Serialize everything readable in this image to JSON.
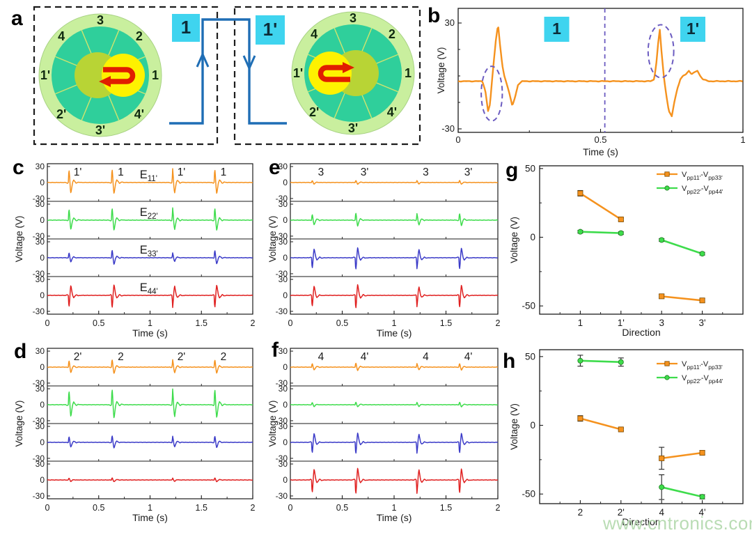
{
  "watermark": "www.cntronics.com",
  "colors": {
    "orange": "#f5921e",
    "green": "#3edc4c",
    "blue": "#3b3bc8",
    "red": "#e02020",
    "cyan_box": "#3fd4ef",
    "pulse_blue": "#1f6eb5",
    "dashed_purple": "#6b5bc0",
    "ring_green": "#c9ef9e",
    "disc_teal": "#2fcf9b",
    "core_yellow": "#fef200",
    "core_olive": "#b8d435",
    "arrow_red": "#e11e00",
    "axis": "#1a1a1a",
    "watermark_green": "#b2d9ac"
  },
  "panels": {
    "a": {
      "letter": "a",
      "devices": [
        {
          "pulse_label": "1",
          "segments": [
            "3",
            "2",
            "1",
            "4'",
            "3'",
            "2'",
            "1'",
            "4"
          ],
          "arrow_dir": "left",
          "core_side": "right"
        },
        {
          "pulse_label": "1'",
          "segments": [
            "3",
            "2",
            "1",
            "4'",
            "3'",
            "2'",
            "1'",
            "4"
          ],
          "arrow_dir": "right",
          "core_side": "left"
        }
      ]
    },
    "b": {
      "letter": "b"
    },
    "c": {
      "letter": "c"
    },
    "d": {
      "letter": "d"
    },
    "e": {
      "letter": "e"
    },
    "f": {
      "letter": "f"
    },
    "g": {
      "letter": "g"
    },
    "h": {
      "letter": "h"
    }
  },
  "chart_data": [
    {
      "id": "b",
      "type": "line",
      "xlabel": "Time (s)",
      "ylabel": "Voltage (V)",
      "xlim": [
        0,
        1
      ],
      "ylim": [
        -30,
        30
      ],
      "xticks": [
        "0",
        "0.5",
        "1"
      ],
      "yticks": [
        "30",
        "-30"
      ],
      "annotations": {
        "vline_x": 0.515,
        "boxes": [
          {
            "label": "1",
            "x": 0.302
          },
          {
            "label": "1'",
            "x": 0.78
          }
        ],
        "ellipses": [
          {
            "cx": 0.118,
            "cy": -10,
            "rx_s": 0.037,
            "ry_v": 15.5
          },
          {
            "cx": 0.712,
            "cy": 14,
            "rx_s": 0.045,
            "ry_v": 15
          }
        ]
      },
      "series": [
        {
          "name": "voltage-trace",
          "color_key": "orange",
          "points": [
            [
              0,
              -3
            ],
            [
              0.05,
              -3
            ],
            [
              0.085,
              -3
            ],
            [
              0.095,
              -8
            ],
            [
              0.105,
              -20
            ],
            [
              0.112,
              -16
            ],
            [
              0.118,
              -4
            ],
            [
              0.125,
              8
            ],
            [
              0.132,
              20
            ],
            [
              0.14,
              29
            ],
            [
              0.148,
              16
            ],
            [
              0.155,
              6
            ],
            [
              0.162,
              0
            ],
            [
              0.17,
              -4
            ],
            [
              0.18,
              -10
            ],
            [
              0.19,
              -17
            ],
            [
              0.2,
              -12
            ],
            [
              0.21,
              -5
            ],
            [
              0.225,
              -3
            ],
            [
              0.3,
              -3
            ],
            [
              0.4,
              -3
            ],
            [
              0.5,
              -3
            ],
            [
              0.6,
              -3
            ],
            [
              0.675,
              -3
            ],
            [
              0.688,
              -2
            ],
            [
              0.695,
              6
            ],
            [
              0.702,
              18
            ],
            [
              0.708,
              26
            ],
            [
              0.715,
              12
            ],
            [
              0.722,
              0
            ],
            [
              0.73,
              -10
            ],
            [
              0.74,
              -20
            ],
            [
              0.75,
              -23
            ],
            [
              0.76,
              -14
            ],
            [
              0.77,
              -7
            ],
            [
              0.78,
              -2
            ],
            [
              0.79,
              0
            ],
            [
              0.8,
              1
            ],
            [
              0.81,
              3
            ],
            [
              0.82,
              1
            ],
            [
              0.83,
              2
            ],
            [
              0.84,
              3
            ],
            [
              0.85,
              0
            ],
            [
              0.86,
              -2
            ],
            [
              0.88,
              -3
            ],
            [
              0.94,
              -3
            ],
            [
              1,
              -3
            ]
          ]
        }
      ]
    },
    {
      "id": "c",
      "type": "stacked-line",
      "xlabel": "Time (s)",
      "ylabel": "Voltage (V)",
      "xlim": [
        0,
        2
      ],
      "xticks": [
        "0",
        "0.5",
        "1",
        "1.5",
        "2"
      ],
      "row_ylim": [
        -30,
        30
      ],
      "row_yticks": [
        "30",
        "0",
        "-30"
      ],
      "event_times_s": [
        0.21,
        0.63,
        1.22,
        1.63
      ],
      "event_labels": [
        "1'",
        "1",
        "1'",
        "1"
      ],
      "traces": [
        {
          "color_key": "orange",
          "label_parts": [
            "E",
            "11'"
          ],
          "peak_amplitudes_v": [
            28,
            30,
            28,
            30
          ]
        },
        {
          "color_key": "green",
          "label_parts": [
            "E",
            "22'"
          ],
          "peak_amplitudes_v": [
            25,
            27,
            25,
            27
          ]
        },
        {
          "color_key": "blue",
          "label_parts": [
            "E",
            "33'"
          ],
          "peak_amplitudes_v": [
            11,
            18,
            10,
            17
          ]
        },
        {
          "color_key": "red",
          "label_parts": [
            "E",
            "44'"
          ],
          "peak_amplitudes_v": [
            -26,
            -29,
            -25,
            -28
          ]
        }
      ]
    },
    {
      "id": "d",
      "type": "stacked-line",
      "xlabel": "Time (s)",
      "ylabel": "Voltage (V)",
      "xlim": [
        0,
        2
      ],
      "xticks": [
        "0",
        "0.5",
        "1",
        "1.5",
        "2"
      ],
      "row_ylim": [
        -30,
        30
      ],
      "row_yticks": [
        "30",
        "0",
        "-30"
      ],
      "event_times_s": [
        0.21,
        0.63,
        1.22,
        1.63
      ],
      "event_labels": [
        "2'",
        "2",
        "2'",
        "2"
      ],
      "traces": [
        {
          "color_key": "orange",
          "peak_amplitudes_v": [
            15,
            17,
            15,
            16
          ]
        },
        {
          "color_key": "green",
          "peak_amplitudes_v": [
            31,
            36,
            32,
            35
          ]
        },
        {
          "color_key": "blue",
          "peak_amplitudes_v": [
            13,
            15,
            12,
            14
          ]
        },
        {
          "color_key": "red",
          "peak_amplitudes_v": [
            4,
            5,
            4,
            5
          ]
        }
      ]
    },
    {
      "id": "e",
      "type": "stacked-line",
      "xlabel": "Time (s)",
      "ylabel": "Voltage (V)",
      "xlim": [
        0,
        2
      ],
      "xticks": [
        "0",
        "0.5",
        "1",
        "1.5",
        "2"
      ],
      "row_ylim": [
        -30,
        30
      ],
      "row_yticks": [
        "30",
        "0",
        "-30"
      ],
      "event_times_s": [
        0.21,
        0.63,
        1.22,
        1.63
      ],
      "event_labels": [
        "3",
        "3'",
        "3",
        "3'"
      ],
      "traces": [
        {
          "color_key": "orange",
          "peak_amplitudes_v": [
            4,
            5,
            4,
            5
          ]
        },
        {
          "color_key": "green",
          "peak_amplitudes_v": [
            13,
            16,
            13,
            15
          ]
        },
        {
          "color_key": "blue",
          "peak_amplitudes_v": [
            -24,
            -27,
            -22,
            -26
          ]
        },
        {
          "color_key": "red",
          "peak_amplitudes_v": [
            -25,
            -30,
            -23,
            -28
          ]
        }
      ]
    },
    {
      "id": "f",
      "type": "stacked-line",
      "xlabel": "Time (s)",
      "ylabel": "Voltage (V)",
      "xlim": [
        0,
        2
      ],
      "xticks": [
        "0",
        "0.5",
        "1",
        "1.5",
        "2"
      ],
      "row_ylim": [
        -30,
        30
      ],
      "row_yticks": [
        "30",
        "0",
        "-30"
      ],
      "event_times_s": [
        0.21,
        0.63,
        1.22,
        1.63
      ],
      "event_labels": [
        "4",
        "4'",
        "4",
        "4'"
      ],
      "traces": [
        {
          "color_key": "orange",
          "peak_amplitudes_v": [
            8,
            9,
            7,
            8
          ]
        },
        {
          "color_key": "green",
          "peak_amplitudes_v": [
            5,
            6,
            5,
            6
          ]
        },
        {
          "color_key": "blue",
          "peak_amplitudes_v": [
            -24,
            -26,
            -22,
            -25
          ]
        },
        {
          "color_key": "red",
          "peak_amplitudes_v": [
            -29,
            -32,
            -27,
            -30
          ]
        }
      ]
    },
    {
      "id": "g",
      "type": "scatter-line",
      "xlabel": "Direction",
      "ylabel": "Voltage (V)",
      "categories": [
        "1",
        "1'",
        "3",
        "3'"
      ],
      "ylim": [
        -50,
        50
      ],
      "yticks": [
        "50",
        "0",
        "-50"
      ],
      "legend": [
        {
          "parts": [
            "V",
            "pp11'",
            "-V",
            "pp33'"
          ],
          "color_key": "orange",
          "marker": "square"
        },
        {
          "parts": [
            "V",
            "pp22'",
            "-V",
            "pp44'"
          ],
          "color_key": "green",
          "marker": "circle"
        }
      ],
      "series": [
        {
          "name": "Vpp11'-Vpp33'",
          "color_key": "orange",
          "marker": "square",
          "values": [
            32,
            13,
            -43,
            -46
          ],
          "errors": [
            2,
            1,
            1.5,
            1.5
          ],
          "pairs": [
            [
              0,
              1
            ],
            [
              2,
              3
            ]
          ]
        },
        {
          "name": "Vpp22'-Vpp44'",
          "color_key": "green",
          "marker": "circle",
          "values": [
            4,
            3,
            -2,
            -12
          ],
          "errors": [
            1,
            1,
            1,
            1
          ],
          "pairs": [
            [
              0,
              1
            ],
            [
              2,
              3
            ]
          ]
        }
      ]
    },
    {
      "id": "h",
      "type": "scatter-line",
      "xlabel": "Direction",
      "ylabel": "Voltage (V)",
      "categories": [
        "2",
        "2'",
        "4",
        "4'"
      ],
      "ylim": [
        -50,
        50
      ],
      "yticks": [
        "50",
        "0",
        "-50"
      ],
      "legend": [
        {
          "parts": [
            "V",
            "pp11'",
            "-V",
            "pp33'"
          ],
          "color_key": "orange",
          "marker": "square"
        },
        {
          "parts": [
            "V",
            "pp22'",
            "-V",
            "pp44'"
          ],
          "color_key": "green",
          "marker": "circle"
        }
      ],
      "series": [
        {
          "name": "Vpp11'-Vpp33'",
          "color_key": "orange",
          "marker": "square",
          "values": [
            5,
            -3,
            -24,
            -20
          ],
          "errors": [
            2,
            1,
            8,
            1.5
          ],
          "pairs": [
            [
              0,
              1
            ],
            [
              2,
              3
            ]
          ]
        },
        {
          "name": "Vpp22'-Vpp44'",
          "color_key": "green",
          "marker": "circle",
          "values": [
            47,
            46,
            -45,
            -52
          ],
          "errors": [
            4,
            3,
            9,
            1.5
          ],
          "pairs": [
            [
              0,
              1
            ],
            [
              2,
              3
            ]
          ]
        }
      ]
    }
  ]
}
